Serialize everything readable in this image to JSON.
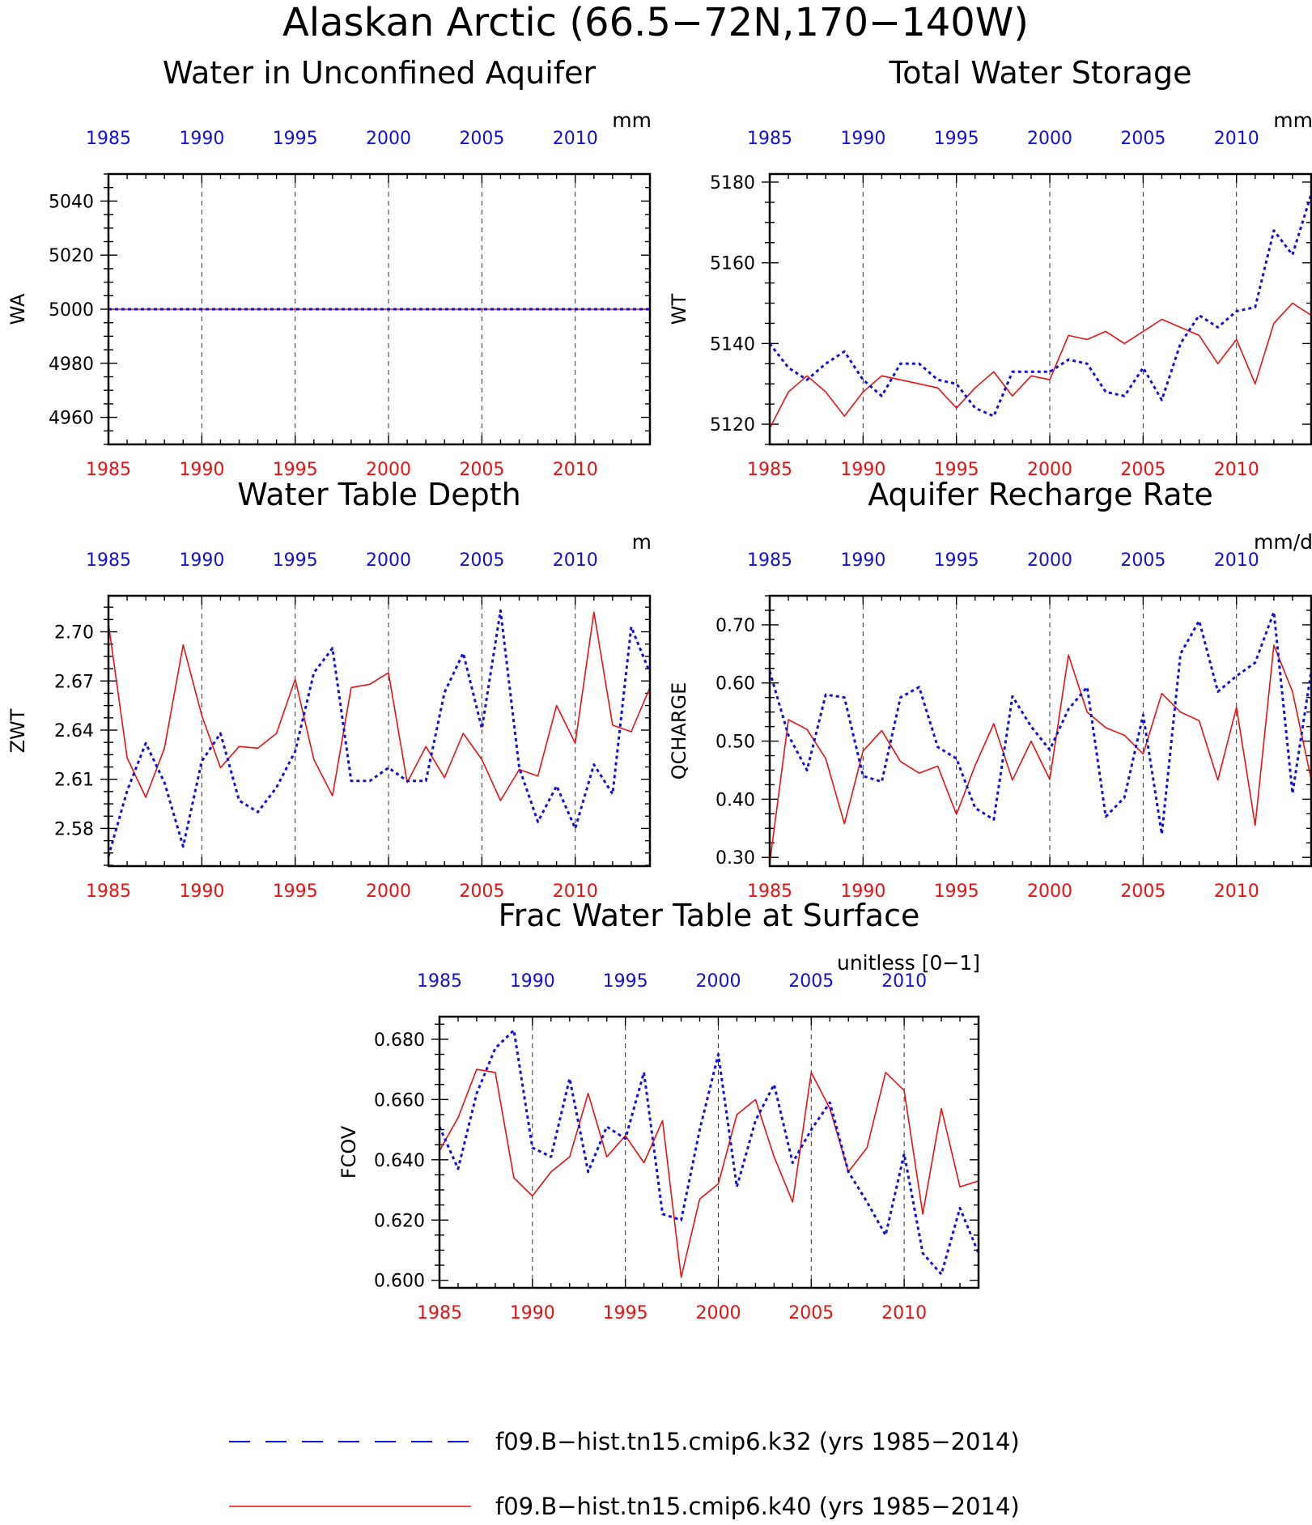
{
  "figure": {
    "title": "Alaskan Arctic (66.5−72N,170−140W)",
    "colors": {
      "k32": "#1010e0",
      "k40": "#ee1010"
    }
  },
  "legend": [
    {
      "label": "f09.B−hist.tn15.cmip6.k32 (yrs 1985−2014)",
      "color": "#1010e0",
      "style": "dashed"
    },
    {
      "label": "f09.B−hist.tn15.cmip6.k40 (yrs 1985−2014)",
      "color": "#ee1010",
      "style": "solid"
    }
  ],
  "chart_data": [
    {
      "type": "line",
      "title": "Water in Unconfined Aquifer",
      "ylabel": "WA",
      "unit": "mm",
      "xlim": [
        1985,
        2014
      ],
      "ylim": [
        4950,
        5050
      ],
      "yticks": [
        4960,
        4980,
        5000,
        5020,
        5040
      ],
      "ytick_labels": [
        "4960",
        "4980",
        "5000",
        "5020",
        "5040"
      ],
      "xticks": [
        1985,
        1990,
        1995,
        2000,
        2005,
        2010
      ],
      "x_start": 1985,
      "grid": "vertical dashed",
      "series": [
        {
          "name": "f09.B-hist.tn15.cmip6.k32",
          "color": "#1010e0",
          "style": "dashed",
          "values": [
            5000,
            5000,
            5000,
            5000,
            5000,
            5000,
            5000,
            5000,
            5000,
            5000,
            5000,
            5000,
            5000,
            5000,
            5000,
            5000,
            5000,
            5000,
            5000,
            5000,
            5000,
            5000,
            5000,
            5000,
            5000,
            5000,
            5000,
            5000,
            5000,
            5000
          ]
        },
        {
          "name": "f09.B-hist.tn15.cmip6.k40",
          "color": "#ee1010",
          "style": "solid",
          "values": [
            5000,
            5000,
            5000,
            5000,
            5000,
            5000,
            5000,
            5000,
            5000,
            5000,
            5000,
            5000,
            5000,
            5000,
            5000,
            5000,
            5000,
            5000,
            5000,
            5000,
            5000,
            5000,
            5000,
            5000,
            5000,
            5000,
            5000,
            5000,
            5000,
            5000
          ]
        }
      ]
    },
    {
      "type": "line",
      "title": "Total Water Storage",
      "ylabel": "WT",
      "unit": "mm",
      "xlim": [
        1985,
        2014
      ],
      "ylim": [
        5115,
        5182
      ],
      "yticks": [
        5120,
        5140,
        5160,
        5180
      ],
      "ytick_labels": [
        "5120",
        "5140",
        "5160",
        "5180"
      ],
      "xticks": [
        1985,
        1990,
        1995,
        2000,
        2005,
        2010
      ],
      "x_start": 1985,
      "grid": "vertical dashed",
      "series": [
        {
          "name": "f09.B-hist.tn15.cmip6.k32",
          "color": "#1010e0",
          "style": "dashed",
          "values": [
            5140,
            5134,
            5131,
            5135,
            5138,
            5131,
            5127,
            5135,
            5135,
            5131,
            5130,
            5124,
            5122,
            5133,
            5133,
            5133,
            5136,
            5135,
            5128,
            5127,
            5134,
            5126,
            5140,
            5147,
            5144,
            5148,
            5149,
            5168,
            5162,
            5177
          ]
        },
        {
          "name": "f09.B-hist.tn15.cmip6.k40",
          "color": "#ee1010",
          "style": "solid",
          "values": [
            5119,
            5128,
            5132,
            5128,
            5122,
            5128,
            5132,
            5131,
            5130,
            5129,
            5124,
            5129,
            5133,
            5127,
            5132,
            5131,
            5142,
            5141,
            5143,
            5140,
            5143,
            5146,
            5144,
            5142,
            5135,
            5141,
            5130,
            5145,
            5150,
            5147
          ]
        }
      ]
    },
    {
      "type": "line",
      "title": "Water Table Depth",
      "ylabel": "ZWT",
      "unit": "m",
      "xlim": [
        1985,
        2014
      ],
      "ylim": [
        2.557,
        2.722
      ],
      "yticks": [
        2.58,
        2.61,
        2.64,
        2.67,
        2.7
      ],
      "ytick_labels": [
        "2.58",
        "2.61",
        "2.64",
        "2.67",
        "2.70"
      ],
      "xticks": [
        1985,
        1990,
        1995,
        2000,
        2005,
        2010
      ],
      "x_start": 1985,
      "grid": "vertical dashed",
      "series": [
        {
          "name": "f09.B-hist.tn15.cmip6.k32",
          "color": "#1010e0",
          "style": "dashed",
          "values": [
            2.563,
            2.603,
            2.632,
            2.608,
            2.569,
            2.621,
            2.638,
            2.597,
            2.59,
            2.605,
            2.627,
            2.675,
            2.69,
            2.609,
            2.609,
            2.617,
            2.609,
            2.609,
            2.663,
            2.687,
            2.641,
            2.713,
            2.617,
            2.584,
            2.606,
            2.58,
            2.619,
            2.601,
            2.703,
            2.675
          ]
        },
        {
          "name": "f09.B-hist.tn15.cmip6.k40",
          "color": "#ee1010",
          "style": "solid",
          "values": [
            2.705,
            2.623,
            2.599,
            2.629,
            2.692,
            2.649,
            2.617,
            2.63,
            2.629,
            2.638,
            2.671,
            2.622,
            2.6,
            2.666,
            2.668,
            2.675,
            2.608,
            2.63,
            2.611,
            2.638,
            2.622,
            2.597,
            2.616,
            2.612,
            2.655,
            2.632,
            2.712,
            2.643,
            2.639,
            2.666
          ]
        }
      ]
    },
    {
      "type": "line",
      "title": "Aquifer Recharge Rate",
      "ylabel": "QCHARGE",
      "unit": "mm/d",
      "xlim": [
        1985,
        2014
      ],
      "ylim": [
        0.285,
        0.75
      ],
      "yticks": [
        0.3,
        0.4,
        0.5,
        0.6,
        0.7
      ],
      "ytick_labels": [
        "0.30",
        "0.40",
        "0.50",
        "0.60",
        "0.70"
      ],
      "xticks": [
        1985,
        1990,
        1995,
        2000,
        2005,
        2010
      ],
      "x_start": 1985,
      "grid": "vertical dashed",
      "series": [
        {
          "name": "f09.B-hist.tn15.cmip6.k32",
          "color": "#1010e0",
          "style": "dashed",
          "values": [
            0.62,
            0.51,
            0.45,
            0.58,
            0.575,
            0.44,
            0.43,
            0.575,
            0.593,
            0.49,
            0.47,
            0.385,
            0.365,
            0.577,
            0.525,
            0.485,
            0.555,
            0.593,
            0.37,
            0.403,
            0.545,
            0.34,
            0.65,
            0.707,
            0.585,
            0.612,
            0.635,
            0.722,
            0.41,
            0.62
          ]
        },
        {
          "name": "f09.B-hist.tn15.cmip6.k40",
          "color": "#ee1010",
          "style": "solid",
          "values": [
            0.29,
            0.537,
            0.52,
            0.47,
            0.358,
            0.483,
            0.518,
            0.465,
            0.445,
            0.457,
            0.374,
            0.458,
            0.53,
            0.433,
            0.5,
            0.434,
            0.648,
            0.55,
            0.523,
            0.51,
            0.478,
            0.582,
            0.55,
            0.535,
            0.433,
            0.558,
            0.355,
            0.665,
            0.585,
            0.434
          ]
        }
      ]
    },
    {
      "type": "line",
      "title": "Frac Water Table at Surface",
      "ylabel": "FCOV",
      "unit": "unitless [0−1]",
      "xlim": [
        1985,
        2014
      ],
      "ylim": [
        0.5975,
        0.6875
      ],
      "yticks": [
        0.6,
        0.62,
        0.64,
        0.66,
        0.68
      ],
      "ytick_labels": [
        "0.600",
        "0.620",
        "0.640",
        "0.660",
        "0.680"
      ],
      "xticks": [
        1985,
        1990,
        1995,
        2000,
        2005,
        2010
      ],
      "x_start": 1985,
      "grid": "vertical dashed",
      "series": [
        {
          "name": "f09.B-hist.tn15.cmip6.k32",
          "color": "#1010e0",
          "style": "dashed",
          "values": [
            0.651,
            0.637,
            0.662,
            0.677,
            0.683,
            0.644,
            0.641,
            0.667,
            0.636,
            0.651,
            0.647,
            0.669,
            0.622,
            0.62,
            0.65,
            0.675,
            0.631,
            0.653,
            0.665,
            0.639,
            0.65,
            0.659,
            0.636,
            0.626,
            0.615,
            0.642,
            0.609,
            0.602,
            0.624,
            0.609
          ]
        },
        {
          "name": "f09.B-hist.tn15.cmip6.k40",
          "color": "#ee1010",
          "style": "solid",
          "values": [
            0.643,
            0.654,
            0.67,
            0.669,
            0.634,
            0.628,
            0.636,
            0.641,
            0.662,
            0.641,
            0.648,
            0.639,
            0.653,
            0.601,
            0.627,
            0.632,
            0.655,
            0.66,
            0.641,
            0.626,
            0.669,
            0.657,
            0.636,
            0.644,
            0.669,
            0.663,
            0.622,
            0.657,
            0.631,
            0.633
          ]
        }
      ]
    }
  ]
}
